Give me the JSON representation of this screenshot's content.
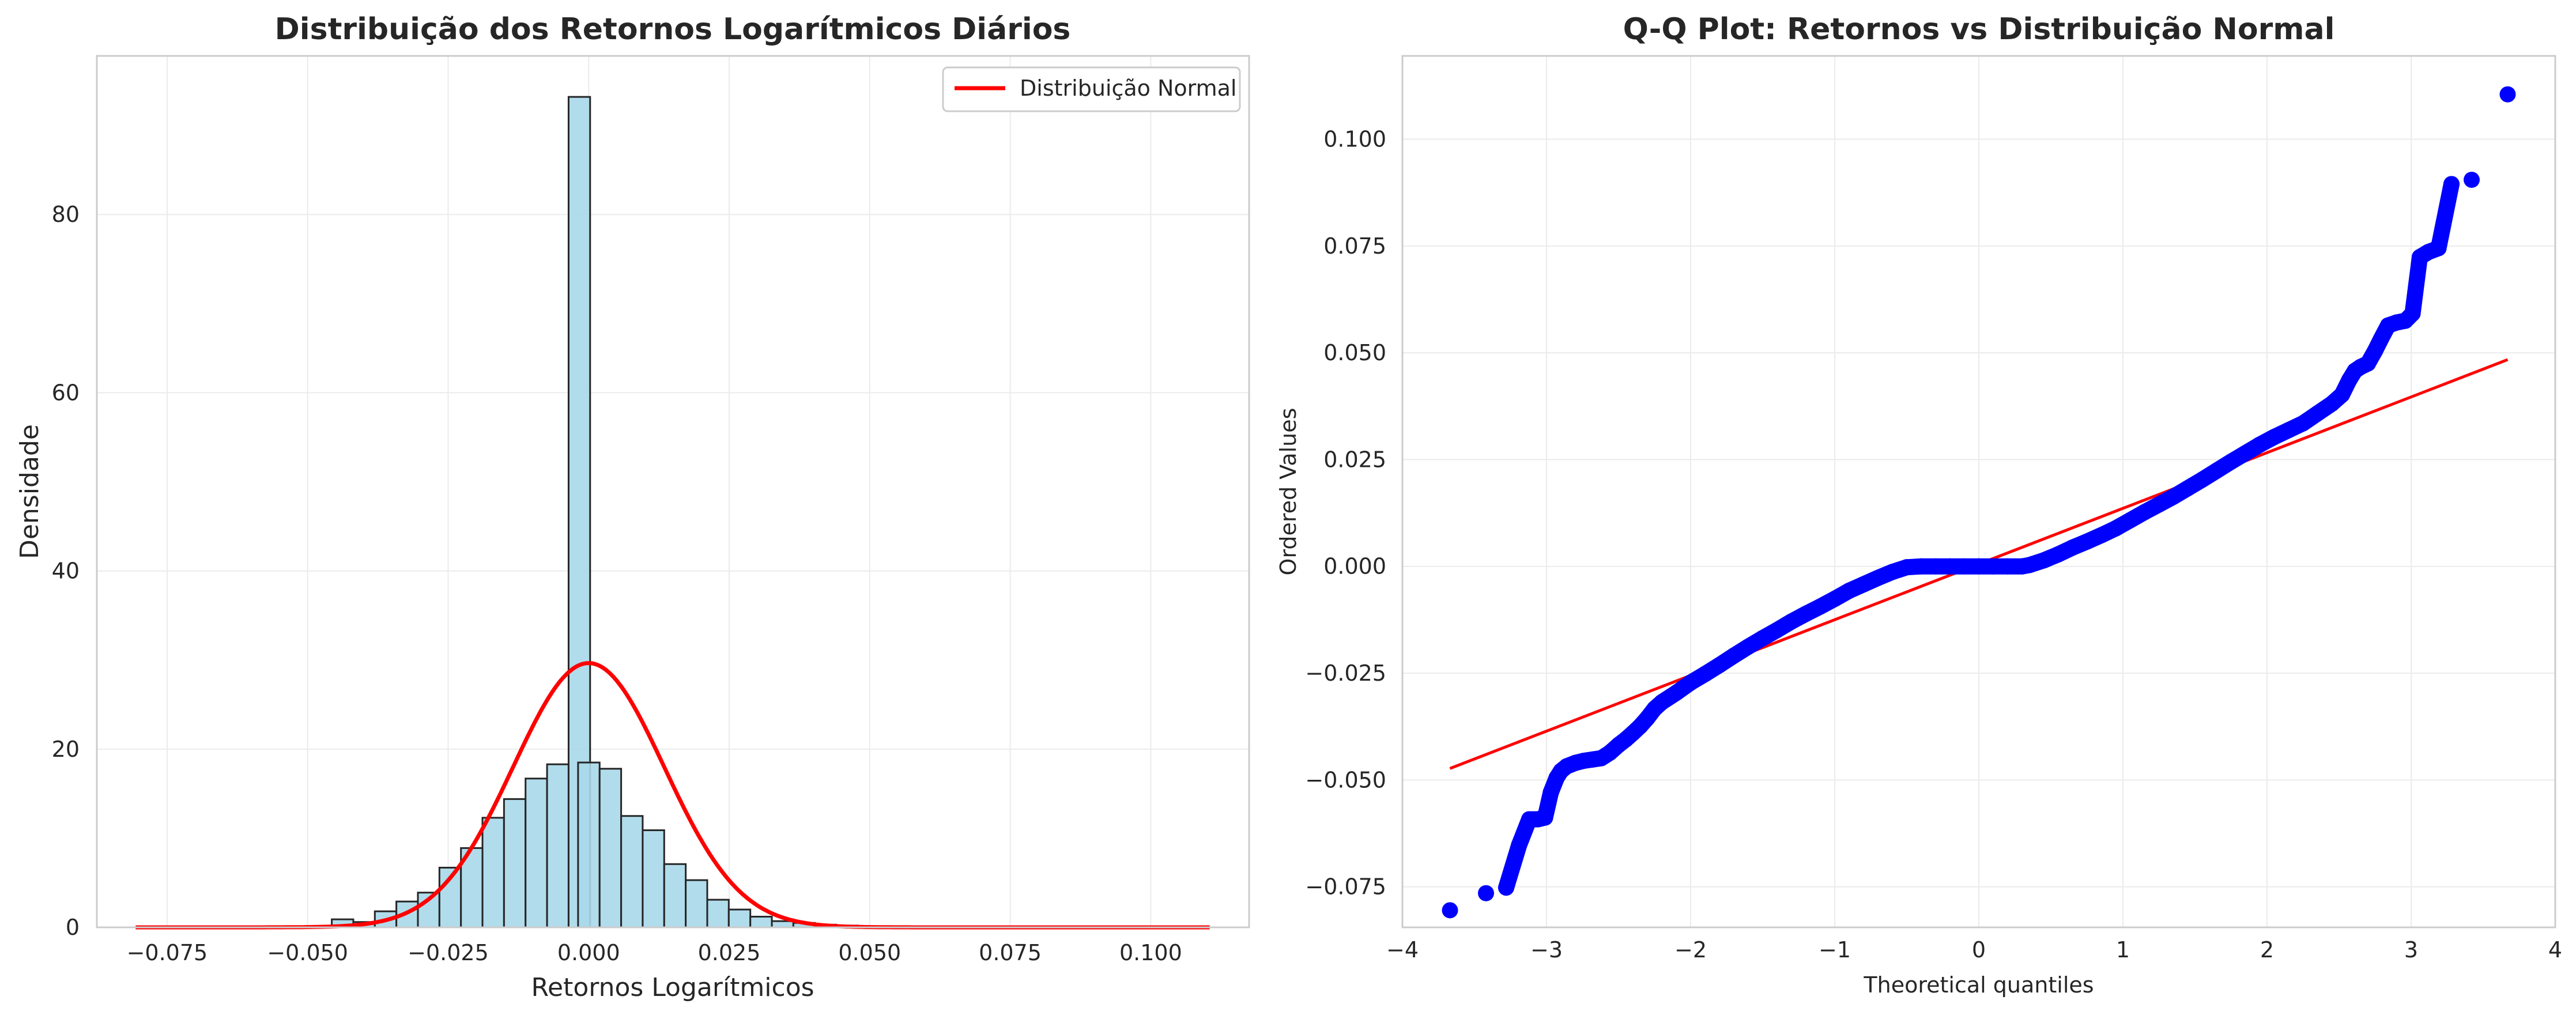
{
  "chart_data": [
    {
      "type": "bar",
      "title": "Distribuição dos Retornos Logarítmicos Diários",
      "xlabel": "Retornos Logarítmicos",
      "ylabel": "Densidade",
      "xlim": [
        -0.0875,
        0.1175
      ],
      "ylim": [
        0,
        97.8
      ],
      "xticks": [
        "−0.075",
        "−0.050",
        "−0.025",
        "0.000",
        "0.025",
        "0.050",
        "0.075",
        "0.100"
      ],
      "xtick_values": [
        -0.075,
        -0.05,
        -0.025,
        0.0,
        0.025,
        0.05,
        0.075,
        0.1
      ],
      "yticks": [
        "0",
        "20",
        "40",
        "60",
        "80"
      ],
      "ytick_values": [
        0,
        20,
        40,
        60,
        80
      ],
      "grid": true,
      "legend": {
        "position": "top-right",
        "entries": [
          "Distribuição Normal"
        ]
      },
      "histogram": {
        "bin_width": 0.00383,
        "bin_left_edges": [
          -0.0457,
          -0.04187,
          -0.03804,
          -0.03421,
          -0.03038,
          -0.02655,
          -0.02272,
          -0.01889,
          -0.01506,
          -0.01123,
          -0.0074,
          -0.00357,
          -0.00188,
          0.00195,
          0.00578,
          0.00961,
          0.01344,
          0.01727,
          0.0211,
          0.02493,
          0.02876,
          0.03259,
          0.03642,
          0.04025,
          0.04408
        ],
        "values": [
          0.9,
          0.6,
          1.8,
          2.9,
          3.9,
          6.7,
          8.9,
          12.3,
          14.4,
          16.7,
          18.3,
          93.2,
          18.5,
          17.8,
          12.5,
          10.9,
          7.1,
          5.3,
          3.1,
          2.0,
          1.2,
          0.7,
          0.5,
          0.3,
          0.2
        ],
        "color": "#a8d8ea",
        "edge_color": "#262626"
      },
      "series": [
        {
          "name": "Distribuição Normal",
          "type": "line",
          "distribution": "normal",
          "mean": 0.0,
          "std": 0.01345,
          "x_range": [
            -0.0806,
            0.1105
          ],
          "color": "#ff0000"
        }
      ]
    },
    {
      "type": "scatter",
      "title": "Q-Q Plot: Retornos vs Distribuição Normal",
      "xlabel": "Theoretical quantiles",
      "ylabel": "Ordered Values",
      "xlim": [
        -4,
        4
      ],
      "ylim": [
        -0.0845,
        0.1195
      ],
      "xticks": [
        "−4",
        "−3",
        "−2",
        "−1",
        "0",
        "1",
        "2",
        "3",
        "4"
      ],
      "xtick_values": [
        -4,
        -3,
        -2,
        -1,
        0,
        1,
        2,
        3,
        4
      ],
      "yticks": [
        "−0.075",
        "−0.050",
        "−0.025",
        "0.000",
        "0.025",
        "0.050",
        "0.075",
        "0.100"
      ],
      "ytick_values": [
        -0.075,
        -0.05,
        -0.025,
        0.0,
        0.025,
        0.05,
        0.075,
        0.1
      ],
      "grid": true,
      "series": [
        {
          "type": "scatter",
          "color": "#0000ff",
          "points": [
            [
              -3.67,
              -0.0805
            ],
            [
              -3.42,
              -0.0765
            ],
            [
              -3.28,
              -0.0752
            ],
            [
              -3.19,
              -0.0652
            ],
            [
              -3.12,
              -0.0592
            ],
            [
              -3.06,
              -0.0592
            ],
            [
              -3.01,
              -0.0588
            ],
            [
              -2.97,
              -0.0529
            ],
            [
              -2.93,
              -0.0495
            ],
            [
              -2.9,
              -0.0479
            ],
            [
              -2.86,
              -0.0468
            ],
            [
              -2.8,
              -0.046
            ],
            [
              -2.74,
              -0.0455
            ],
            [
              -2.68,
              -0.0452
            ],
            [
              -2.62,
              -0.0449
            ],
            [
              -2.56,
              -0.0436
            ],
            [
              -2.5,
              -0.0418
            ],
            [
              -2.45,
              -0.0405
            ],
            [
              -2.4,
              -0.039
            ],
            [
              -2.35,
              -0.0374
            ],
            [
              -2.3,
              -0.0355
            ],
            [
              -2.25,
              -0.0333
            ],
            [
              -2.2,
              -0.0318
            ],
            [
              -2.1,
              -0.0296
            ],
            [
              -2.0,
              -0.0272
            ],
            [
              -1.9,
              -0.0252
            ],
            [
              -1.8,
              -0.0231
            ],
            [
              -1.7,
              -0.0209
            ],
            [
              -1.6,
              -0.0188
            ],
            [
              -1.5,
              -0.0168
            ],
            [
              -1.4,
              -0.0149
            ],
            [
              -1.3,
              -0.0129
            ],
            [
              -1.2,
              -0.0111
            ],
            [
              -1.1,
              -0.0094
            ],
            [
              -1.0,
              -0.0076
            ],
            [
              -0.9,
              -0.0057
            ],
            [
              -0.8,
              -0.0042
            ],
            [
              -0.7,
              -0.0027
            ],
            [
              -0.6,
              -0.0013
            ],
            [
              -0.5,
              -0.0002
            ],
            [
              -0.4,
              0.0
            ],
            [
              -0.3,
              0.0
            ],
            [
              -0.2,
              0.0
            ],
            [
              -0.1,
              0.0
            ],
            [
              0.0,
              0.0
            ],
            [
              0.1,
              0.0
            ],
            [
              0.2,
              0.0
            ],
            [
              0.3,
              0.0
            ],
            [
              0.35,
              0.0003
            ],
            [
              0.45,
              0.0014
            ],
            [
              0.55,
              0.0028
            ],
            [
              0.65,
              0.0044
            ],
            [
              0.75,
              0.0058
            ],
            [
              0.85,
              0.0073
            ],
            [
              0.95,
              0.0089
            ],
            [
              1.05,
              0.0108
            ],
            [
              1.15,
              0.0127
            ],
            [
              1.25,
              0.0145
            ],
            [
              1.35,
              0.0163
            ],
            [
              1.45,
              0.0183
            ],
            [
              1.55,
              0.0203
            ],
            [
              1.65,
              0.0224
            ],
            [
              1.75,
              0.0245
            ],
            [
              1.85,
              0.0265
            ],
            [
              1.95,
              0.0285
            ],
            [
              2.05,
              0.0303
            ],
            [
              2.15,
              0.0319
            ],
            [
              2.25,
              0.0335
            ],
            [
              2.35,
              0.0358
            ],
            [
              2.45,
              0.0381
            ],
            [
              2.52,
              0.0402
            ],
            [
              2.57,
              0.0436
            ],
            [
              2.61,
              0.0458
            ],
            [
              2.65,
              0.0467
            ],
            [
              2.7,
              0.0475
            ],
            [
              2.75,
              0.0505
            ],
            [
              2.79,
              0.0532
            ],
            [
              2.84,
              0.0564
            ],
            [
              2.9,
              0.0571
            ],
            [
              2.96,
              0.0575
            ],
            [
              3.01,
              0.0592
            ],
            [
              3.06,
              0.0724
            ],
            [
              3.12,
              0.0736
            ],
            [
              3.19,
              0.0745
            ],
            [
              3.28,
              0.0895
            ],
            [
              3.42,
              0.0905
            ],
            [
              3.67,
              0.1105
            ]
          ]
        },
        {
          "type": "line",
          "color": "#ff0000",
          "x": [
            -3.67,
            3.67
          ],
          "y": [
            -0.0473,
            0.0484
          ]
        }
      ]
    }
  ]
}
